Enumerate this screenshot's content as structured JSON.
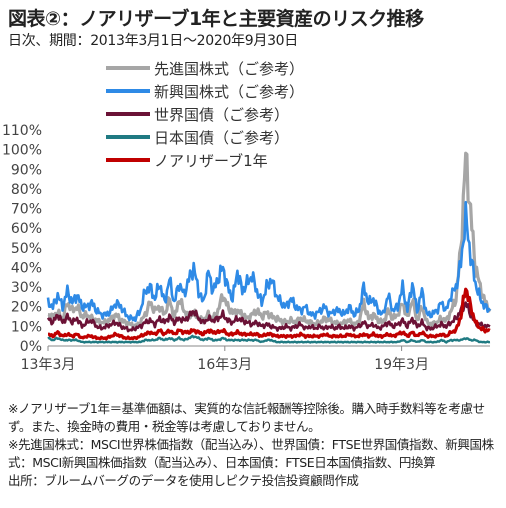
{
  "header": {
    "title": "図表②：ノアリザーブ1年と主要資産のリスク推移",
    "subtitle": "日次、期間：2013年3月1日～2020年9月30日"
  },
  "chart_data": {
    "type": "line",
    "y_ticks": [
      "0%",
      "10%",
      "20%",
      "30%",
      "40%",
      "50%",
      "60%",
      "70%",
      "80%",
      "90%",
      "100%",
      "110%"
    ],
    "x_ticks": [
      "13年3月",
      "16年3月",
      "19年3月"
    ],
    "x_tick_positions": [
      0,
      36,
      72
    ],
    "x_range": [
      0,
      90
    ],
    "ylim": [
      0,
      110
    ],
    "grid": false,
    "legend_position": "top-left",
    "series": [
      {
        "name": "先進国株式（ご参考）",
        "color": "#a6a6a6",
        "values": [
          16,
          15,
          17,
          14,
          22,
          18,
          20,
          15,
          16,
          14,
          13,
          12,
          12,
          14,
          16,
          13,
          12,
          11,
          10,
          12,
          16,
          22,
          18,
          20,
          16,
          24,
          14,
          24,
          18,
          15,
          17,
          14,
          13,
          16,
          14,
          18,
          26,
          20,
          17,
          18,
          16,
          14,
          16,
          18,
          15,
          17,
          15,
          14,
          13,
          12,
          13,
          12,
          14,
          13,
          12,
          11,
          12,
          14,
          13,
          12,
          11,
          12,
          13,
          11,
          12,
          22,
          14,
          16,
          13,
          12,
          18,
          14,
          16,
          22,
          14,
          24,
          13,
          20,
          12,
          11,
          12,
          14,
          13,
          18,
          24,
          50,
          97,
          68,
          40,
          30,
          22,
          19
        ]
      },
      {
        "name": "新興国株式（ご参考）",
        "color": "#2e8ae6",
        "values": [
          22,
          20,
          26,
          20,
          28,
          22,
          26,
          20,
          20,
          22,
          18,
          16,
          16,
          18,
          22,
          20,
          16,
          14,
          14,
          18,
          28,
          30,
          24,
          32,
          22,
          34,
          22,
          32,
          26,
          34,
          40,
          28,
          22,
          38,
          28,
          34,
          40,
          30,
          24,
          38,
          28,
          32,
          36,
          28,
          22,
          30,
          34,
          26,
          22,
          20,
          24,
          20,
          18,
          20,
          16,
          16,
          18,
          20,
          16,
          18,
          18,
          16,
          20,
          16,
          18,
          30,
          22,
          24,
          18,
          16,
          26,
          18,
          20,
          30,
          18,
          32,
          18,
          28,
          16,
          16,
          18,
          22,
          18,
          26,
          30,
          42,
          66,
          46,
          32,
          24,
          20,
          18
        ]
      },
      {
        "name": "世界国債（ご参考）",
        "color": "#6b1236",
        "values": [
          14,
          12,
          16,
          12,
          15,
          12,
          14,
          10,
          12,
          13,
          10,
          9,
          10,
          11,
          12,
          10,
          9,
          8,
          9,
          10,
          12,
          13,
          11,
          14,
          12,
          15,
          12,
          14,
          13,
          15,
          18,
          14,
          12,
          14,
          13,
          14,
          16,
          13,
          12,
          14,
          13,
          12,
          11,
          12,
          10,
          11,
          10,
          9,
          9,
          10,
          9,
          10,
          11,
          9,
          10,
          9,
          10,
          9,
          10,
          9,
          10,
          9,
          10,
          9,
          10,
          12,
          10,
          11,
          9,
          10,
          12,
          10,
          11,
          13,
          10,
          14,
          10,
          12,
          9,
          9,
          10,
          11,
          10,
          12,
          14,
          18,
          22,
          16,
          12,
          11,
          10,
          10
        ]
      },
      {
        "name": "日本国債（ご参考）",
        "color": "#1f7a82",
        "values": [
          4,
          3,
          4,
          3,
          3,
          3,
          3,
          2,
          2,
          2,
          2,
          2,
          2,
          2,
          2,
          2,
          2,
          2,
          2,
          2,
          3,
          3,
          3,
          4,
          3,
          4,
          3,
          4,
          3,
          4,
          5,
          4,
          3,
          4,
          3,
          3,
          4,
          3,
          3,
          3,
          3,
          3,
          3,
          3,
          2,
          3,
          3,
          2,
          2,
          2,
          2,
          2,
          2,
          2,
          2,
          2,
          2,
          2,
          2,
          2,
          2,
          2,
          2,
          2,
          2,
          2,
          2,
          2,
          2,
          2,
          2,
          2,
          2,
          3,
          2,
          3,
          2,
          3,
          2,
          2,
          2,
          3,
          2,
          3,
          3,
          3,
          4,
          3,
          3,
          2,
          2,
          2
        ]
      },
      {
        "name": "ノアリザーブ1年",
        "color": "#c00000",
        "values": [
          6,
          5,
          7,
          5,
          6,
          5,
          6,
          4,
          5,
          5,
          4,
          4,
          4,
          5,
          6,
          5,
          4,
          4,
          4,
          5,
          6,
          7,
          6,
          8,
          6,
          8,
          6,
          8,
          7,
          7,
          8,
          7,
          6,
          8,
          7,
          7,
          8,
          6,
          6,
          7,
          6,
          6,
          6,
          6,
          5,
          6,
          6,
          5,
          5,
          5,
          5,
          5,
          6,
          5,
          5,
          5,
          5,
          6,
          5,
          5,
          5,
          5,
          6,
          5,
          5,
          6,
          5,
          6,
          5,
          5,
          6,
          5,
          6,
          7,
          5,
          7,
          5,
          7,
          5,
          5,
          5,
          6,
          5,
          7,
          8,
          15,
          30,
          20,
          12,
          9,
          8,
          8
        ]
      }
    ]
  },
  "notes": [
    "※ノアリザーブ1年＝基準価額は、実質的な信託報酬等控除後。購入時手数料等を考慮せず。また、換金時の費用・税金等は考慮しておりません。",
    "※先進国株式：MSCI世界株価指数（配当込み）、世界国債：FTSE世界国債指数、新興国株式：MSCI新興国株価指数（配当込み）、日本国債：FTSE日本国債指数、円換算",
    "出所：ブルームバーグのデータを使用しピクテ投信投資顧問作成"
  ]
}
